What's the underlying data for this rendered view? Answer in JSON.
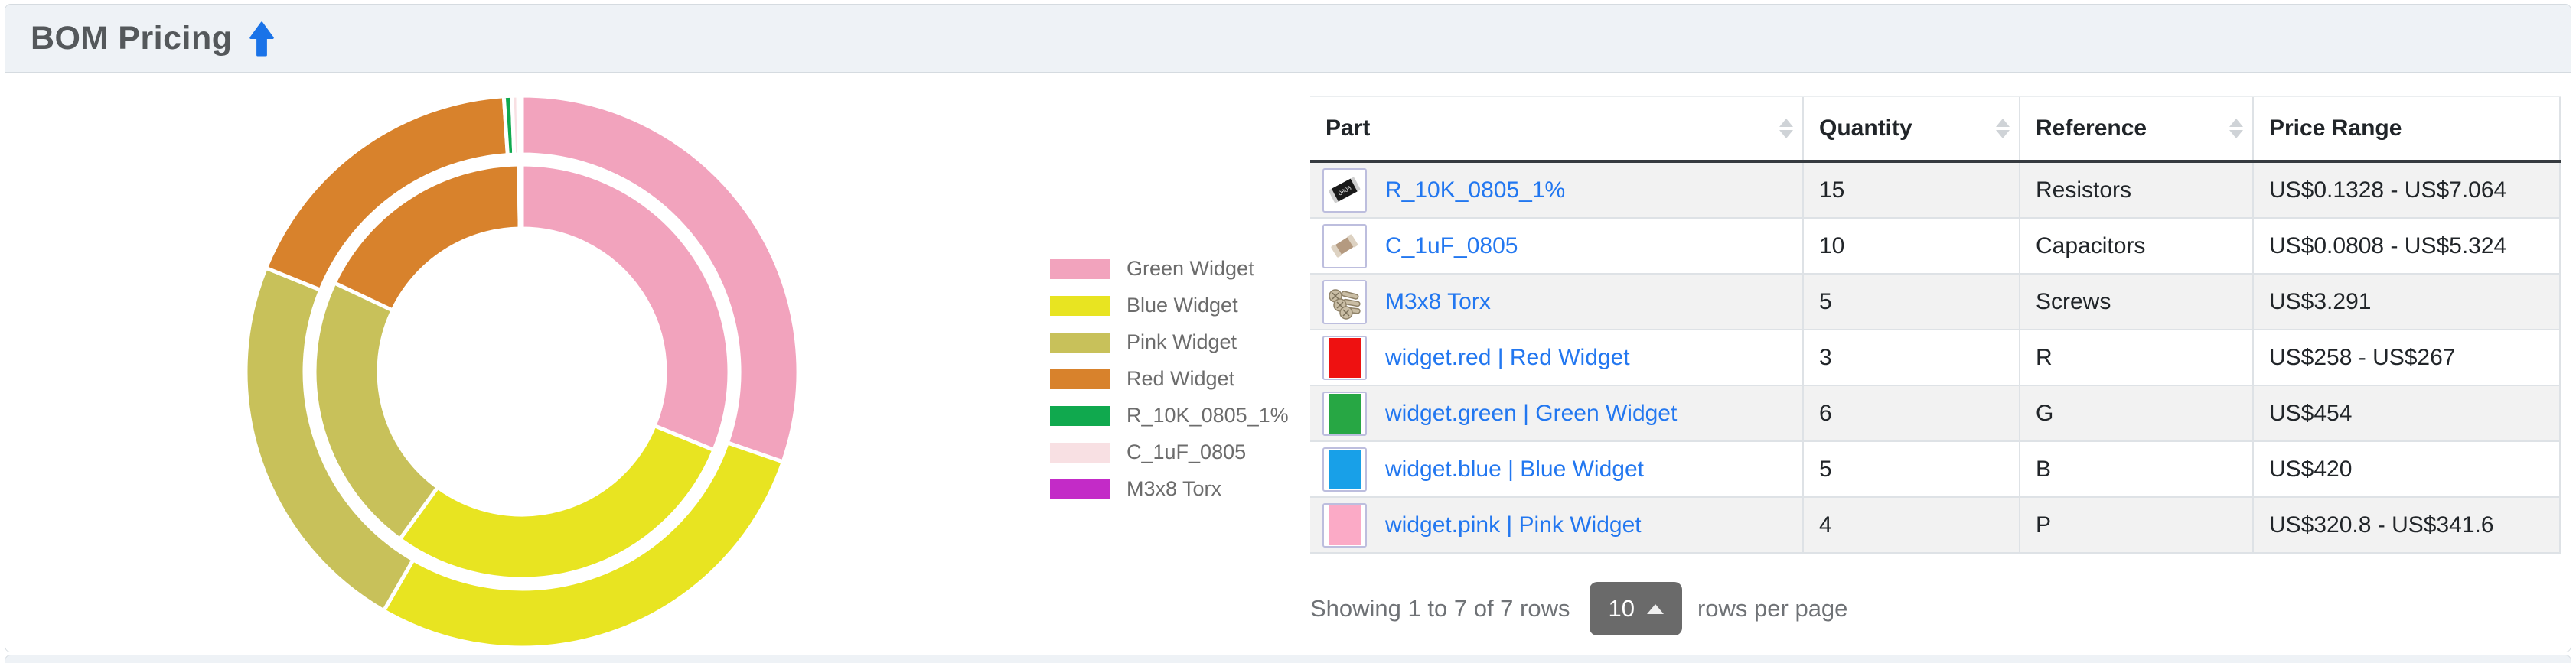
{
  "header": {
    "title": "BOM Pricing",
    "icon": "arrow-up-icon",
    "accent_blue": "#1a73e8"
  },
  "chart_data": {
    "type": "doughnut",
    "title": "BOM Pricing",
    "legend_position": "right",
    "categories": [
      "Green Widget",
      "Blue Widget",
      "Pink Widget",
      "Red Widget",
      "R_10K_0805_1%",
      "C_1uF_0805",
      "M3x8 Torx"
    ],
    "colors": [
      "#F2A3BD",
      "#E8E421",
      "#C8C15A",
      "#D8822C",
      "#10A94E",
      "#F8E0E3",
      "#C32BC7"
    ],
    "series": [
      {
        "name": "outer-ring",
        "values": [
          454,
          420,
          341.6,
          267,
          7.064,
          5.324,
          3.291
        ]
      },
      {
        "name": "inner-ring",
        "values": [
          454,
          420,
          320.8,
          258,
          0.1328,
          0.0808,
          3.291
        ]
      }
    ]
  },
  "table": {
    "columns": [
      {
        "label": "Part",
        "sortable": true
      },
      {
        "label": "Quantity",
        "sortable": true
      },
      {
        "label": "Reference",
        "sortable": true
      },
      {
        "label": "Price Range",
        "sortable": false
      }
    ],
    "rows": [
      {
        "part": "R_10K_0805_1%",
        "thumbnail": "resistor-thumbnail",
        "quantity": "15",
        "reference": "Resistors",
        "price_range": "US$0.1328 - US$7.064"
      },
      {
        "part": "C_1uF_0805",
        "thumbnail": "capacitor-thumbnail",
        "quantity": "10",
        "reference": "Capacitors",
        "price_range": "US$0.0808 - US$5.324"
      },
      {
        "part": "M3x8 Torx",
        "thumbnail": "screws-thumbnail",
        "quantity": "5",
        "reference": "Screws",
        "price_range": "US$3.291"
      },
      {
        "part": "widget.red | Red Widget",
        "thumbnail": "#EE1111",
        "quantity": "3",
        "reference": "R",
        "price_range": "US$258 - US$267"
      },
      {
        "part": "widget.green | Green Widget",
        "thumbnail": "#27A744",
        "quantity": "6",
        "reference": "G",
        "price_range": "US$454"
      },
      {
        "part": "widget.blue | Blue Widget",
        "thumbnail": "#18A0E8",
        "quantity": "5",
        "reference": "B",
        "price_range": "US$420"
      },
      {
        "part": "widget.pink | Pink Widget",
        "thumbnail": "#FBAAC6",
        "quantity": "4",
        "reference": "P",
        "price_range": "US$320.8 - US$341.6"
      }
    ]
  },
  "footer": {
    "showing_text": "Showing 1 to 7 of 7 rows",
    "page_size": "10",
    "rows_per_page_label": "rows per page"
  },
  "colors": {
    "link": "#2277F0",
    "header_bg": "#EEF2F6",
    "stripe": "#F2F2F2"
  },
  "icons": {
    "header": "arrow-up-icon",
    "sort": "sort-both-icon",
    "page_size_caret": "caret-up-icon"
  }
}
